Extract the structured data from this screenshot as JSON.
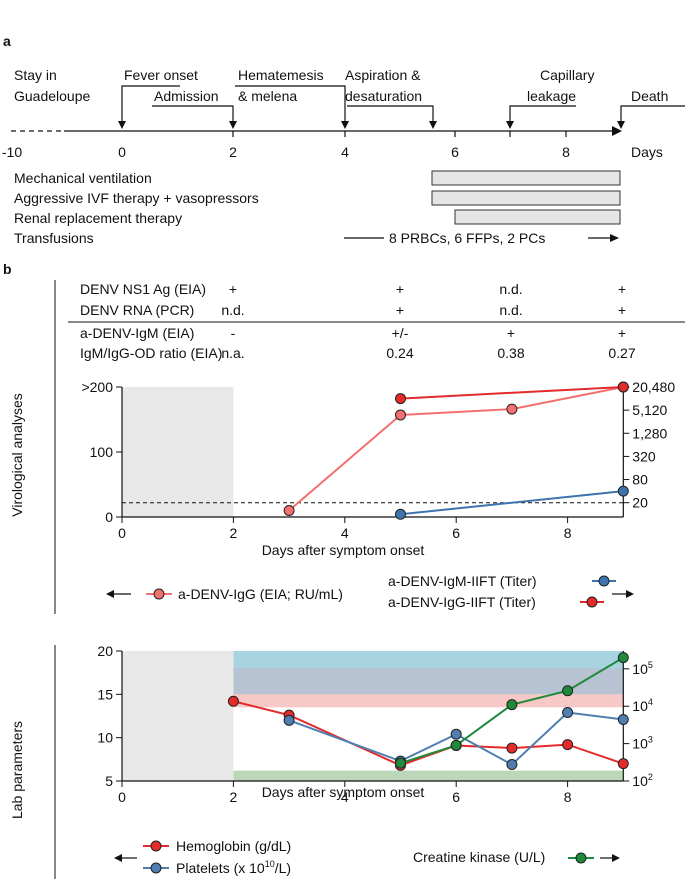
{
  "panel_a": {
    "label": "a",
    "timeline": {
      "axis_ticks": [
        "-10",
        "0",
        "2",
        "4",
        "6",
        "8"
      ],
      "axis_unit": "Days",
      "events": [
        {
          "label_line1": "Stay in",
          "label_line2": "Guadeloupe"
        },
        {
          "label_line1": "Fever onset",
          "label_line2": "Admission"
        },
        {
          "label_line1": "Hematemesis",
          "label_line2": "& melena"
        },
        {
          "label_line1": "Aspiration &",
          "label_line2": "desaturation"
        },
        {
          "label_line1": "Capillary",
          "label_line2": "leakage"
        },
        {
          "label_line1": "Death",
          "label_line2": ""
        }
      ]
    },
    "therapies": [
      {
        "label": "Mechanical ventilation",
        "start": 5.6,
        "end": 9.0
      },
      {
        "label": "Aggressive IVF therapy + vasopressors",
        "start": 5.6,
        "end": 9.0
      },
      {
        "label": "Renal replacement therapy",
        "start": 6.0,
        "end": 9.0
      },
      {
        "label": "Transfusions",
        "arrow_text": "8 PRBCs, 6 FFPs, 2 PCs"
      }
    ]
  },
  "panel_b": {
    "label": "b",
    "side_label_top": "Virological analyses",
    "side_label_bottom": "Lab parameters",
    "table": {
      "rows": [
        {
          "name": "DENV NS1 Ag (EIA)",
          "values": [
            "+",
            "+",
            "n.d.",
            "+"
          ]
        },
        {
          "name": "DENV RNA (PCR)",
          "values": [
            "n.d.",
            "+",
            "n.d.",
            "+"
          ]
        },
        {
          "name": "a-DENV-IgM (EIA)",
          "values": [
            "-",
            "+/-",
            "+",
            "+"
          ]
        },
        {
          "name": "IgM/IgG-OD ratio (EIA)",
          "values": [
            "n.a.",
            "0.24",
            "0.38",
            "0.27"
          ]
        }
      ]
    },
    "legend_virological": {
      "igg_eia": "a-DENV-IgG (EIA; RU/mL)",
      "igm_iift": "a-DENV-IgM-IIFT (Titer)",
      "igg_iift": "a-DENV-IgG-IIFT (Titer)"
    },
    "legend_lab": {
      "hemoglobin": "Hemoglobin (g/dL)",
      "platelets": "Platelets (x 10",
      "platelets_sup": "10",
      "platelets_tail": "/L)",
      "ck": "Creatine kinase (U/L)"
    }
  },
  "chart_data": [
    {
      "type": "line",
      "title": "Virological analyses",
      "xlabel": "Days after symptom onset",
      "ylabel": "",
      "xlim": [
        0,
        9
      ],
      "ylim_left": [
        0,
        200
      ],
      "left_tick_labels": [
        "0",
        "100",
        ">200"
      ],
      "right_tick_labels": [
        "20",
        "80",
        "320",
        "1,280",
        "5,120",
        "20,480"
      ],
      "x_tick_labels": [
        "0",
        "2",
        "4",
        "6",
        "8"
      ],
      "shaded_region_x": [
        0,
        2
      ],
      "dashed_cutoff_left": 22,
      "series": [
        {
          "name": "a-DENV-IgG (EIA; RU/mL)",
          "axis": "left",
          "color": "#f2716f",
          "x": [
            3,
            5,
            7,
            9
          ],
          "y": [
            10,
            157,
            166,
            200
          ]
        },
        {
          "name": "a-DENV-IgG-IIFT (Titer)",
          "axis": "right",
          "color": "#e32b2b",
          "x": [
            5,
            9
          ],
          "y": [
            10240,
            20480
          ]
        },
        {
          "name": "a-DENV-IgM-IIFT (Titer)",
          "axis": "right",
          "color": "#3d74ae",
          "x": [
            5,
            9
          ],
          "y": [
            10,
            40
          ]
        }
      ]
    },
    {
      "type": "line",
      "title": "Lab parameters",
      "xlabel": "Days after symptom onset",
      "ylabel": "",
      "xlim": [
        0,
        9
      ],
      "ylim_left": [
        5,
        20
      ],
      "left_tick_labels": [
        "5",
        "10",
        "15",
        "20"
      ],
      "right_axis_log": [
        100,
        300000
      ],
      "right_tick_labels": [
        "10",
        "10",
        "10",
        "10"
      ],
      "right_tick_exponents": [
        "2",
        "3",
        "4",
        "5"
      ],
      "x_tick_labels": [
        "0",
        "2",
        "4",
        "6",
        "8"
      ],
      "shaded_region_x": [
        0,
        2
      ],
      "reference_bands": [
        {
          "name": "platelets-normal",
          "color": "#a8d4e2",
          "y": [
            15,
            20
          ]
        },
        {
          "name": "overlap",
          "color": "#b7c3d2",
          "y": [
            15,
            18
          ]
        },
        {
          "name": "hemoglobin-normal",
          "color": "#f6c9c6",
          "y": [
            13.5,
            15
          ]
        },
        {
          "name": "ck-normal",
          "color": "#bcd6b8",
          "y": [
            5,
            6.2
          ]
        }
      ],
      "series": [
        {
          "name": "Hemoglobin (g/dL)",
          "axis": "left",
          "color": "#e32b2b",
          "x": [
            2,
            3,
            5,
            6,
            7,
            8,
            9
          ],
          "y": [
            14.2,
            12.6,
            6.8,
            9.1,
            8.8,
            9.2,
            7.0
          ]
        },
        {
          "name": "Platelets (x 10^10/L)",
          "axis": "left",
          "color": "#4e7fb0",
          "x": [
            3,
            5,
            6,
            7,
            8,
            9
          ],
          "y": [
            12.0,
            7.3,
            10.4,
            6.9,
            12.9,
            12.1
          ]
        },
        {
          "name": "Creatine kinase (U/L)",
          "axis": "right",
          "color": "#1e8a3a",
          "x": [
            5,
            6,
            7,
            8,
            9
          ],
          "y": [
            300,
            900,
            11000,
            26000,
            200000
          ]
        }
      ]
    }
  ]
}
